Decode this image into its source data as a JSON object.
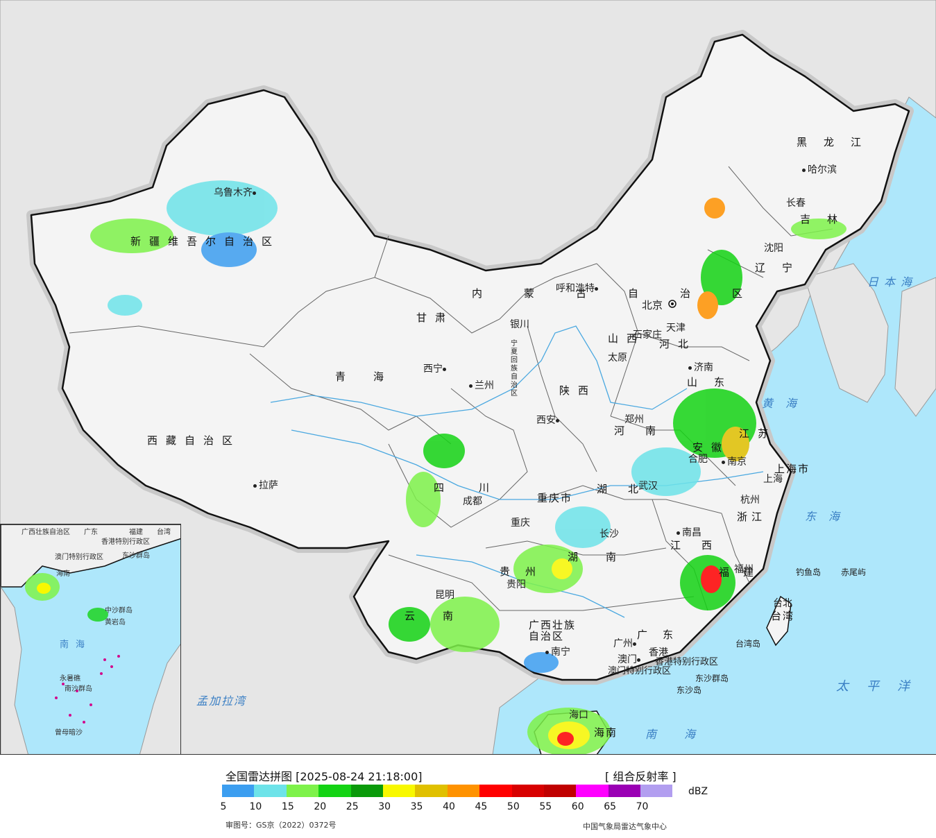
{
  "colors": {
    "ocean": "#aee7fb",
    "foreign_land": "#e6e6e6",
    "china_land": "#f3f3f3",
    "border": "#111111",
    "river": "#4aa8e0"
  },
  "map": {
    "provinces": [
      "新疆维吾尔自治区",
      "西藏自治区",
      "青海",
      "甘肃",
      "内蒙古自治区",
      "黑龙江",
      "吉林",
      "辽宁",
      "河北",
      "山西",
      "陕西",
      "宁夏回族自治区",
      "四川",
      "重庆市",
      "贵州",
      "云南",
      "广西壮族自治区",
      "广东",
      "湖南",
      "湖北",
      "河南",
      "山东",
      "安徽",
      "江苏",
      "浙江",
      "江西",
      "福建",
      "台湾",
      "海南",
      "上海市",
      "香港特别行政区",
      "澳门特别行政区"
    ],
    "cities": [
      "乌鲁木齐",
      "拉萨",
      "西宁",
      "兰州",
      "银川",
      "呼和浩特",
      "哈尔滨",
      "长春",
      "沈阳",
      "北京",
      "天津",
      "石家庄",
      "太原",
      "济南",
      "郑州",
      "西安",
      "成都",
      "重庆",
      "贵阳",
      "昆明",
      "南宁",
      "广州",
      "香港",
      "澳门",
      "长沙",
      "武汉",
      "合肥",
      "南京",
      "上海",
      "杭州",
      "南昌",
      "福州",
      "台北",
      "海口"
    ],
    "capital": "北京",
    "seas": [
      "日本海",
      "黄海",
      "东海",
      "太平洋",
      "南海",
      "孟加拉湾"
    ],
    "islands": [
      "钓鱼岛",
      "赤尾屿",
      "东沙群岛",
      "东沙岛",
      "台湾岛"
    ],
    "inset_labels": [
      "广西壮族自治区",
      "广东",
      "福建",
      "台湾",
      "香港特别行政区",
      "澳门特别行政区",
      "东沙群岛",
      "海南",
      "中沙群岛",
      "黄岩岛",
      "南海",
      "永暑礁",
      "南沙群岛",
      "曾母暗沙"
    ]
  },
  "legend": {
    "title": "全国雷达拼图 [2025-08-24 21:18:00]",
    "product": "[ 组合反射率 ]",
    "unit": "dBZ",
    "ticks": [
      "5",
      "10",
      "15",
      "20",
      "25",
      "30",
      "35",
      "40",
      "45",
      "50",
      "55",
      "60",
      "65",
      "70"
    ],
    "colors": [
      "#3c9ef0",
      "#6de3e9",
      "#7ef24a",
      "#14d314",
      "#0a9a0a",
      "#f8f800",
      "#e0c000",
      "#ff9200",
      "#ff0000",
      "#d80000",
      "#c00000",
      "#ff00ff",
      "#9a00b4",
      "#b29ef0"
    ],
    "review_number": "审图号：GS京（2022）0372号",
    "source": "中国气象局雷达气象中心"
  }
}
